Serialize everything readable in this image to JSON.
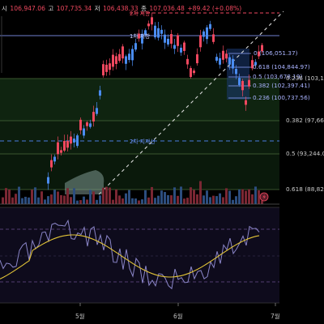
{
  "ohlc": [
    {
      "label": "시",
      "value": "106,947.06"
    },
    {
      "label": "고",
      "value": "107,735.34"
    },
    {
      "label": "저",
      "value": "106,438.33"
    },
    {
      "label": "종",
      "value": "107,036.48"
    },
    {
      "label": "",
      "value": "+89.42 (+0.08%)"
    }
  ],
  "top_label": "2차 저항",
  "resistance1_label": "1차 저항",
  "support2_label": "2차 지지선",
  "fib_inner": [
    "0.618 (104,844.97)",
    "0.5 (103,678.19)",
    "0.382 (102,397.41)",
    "0.236 (100,737.56)"
  ],
  "fib_top_inner": "0 (106,051.37)",
  "fib_axis": [
    "0.236 (103,13",
    "0.382 (97,665",
    "0.5 (93,244.05",
    "0.618 (88,822"
  ],
  "months": [
    "5월",
    "6월",
    "7월"
  ],
  "colors": {
    "up": "#f0485f",
    "down": "#4a8cf0",
    "fib_zone": "#0f2410",
    "rsi_bg": "#0e0b1c",
    "signal": "#e2c437"
  }
}
